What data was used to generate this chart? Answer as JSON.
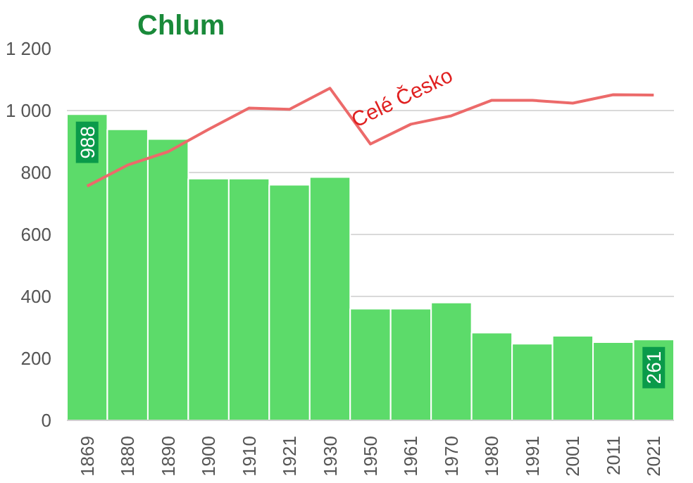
{
  "chart_data": {
    "type": "bar",
    "title": "Chlum",
    "categories": [
      "1869",
      "1880",
      "1890",
      "1900",
      "1910",
      "1921",
      "1930",
      "1950",
      "1961",
      "1970",
      "1980",
      "1991",
      "2001",
      "2011",
      "2021"
    ],
    "series": [
      {
        "color": "#5cdb6a",
        "values": [
          988,
          939,
          908,
          780,
          780,
          760,
          785,
          360,
          360,
          380,
          283,
          247,
          273,
          252,
          261
        ],
        "value_labels": [
          "988",
          null,
          null,
          null,
          null,
          null,
          null,
          null,
          null,
          null,
          null,
          null,
          null,
          null,
          "261"
        ]
      },
      {
        "type": "line",
        "name": "Celé Česko",
        "color": "#ec6a6a",
        "values": [
          756,
          824,
          867,
          939,
          1008,
          1004,
          1072,
          892,
          956,
          983,
          1033,
          1033,
          1024,
          1051,
          1050
        ]
      }
    ],
    "ylim": [
      0,
      1200
    ],
    "yticks": [
      0,
      200,
      400,
      600,
      800,
      {
        "value": 1000,
        "label": "1 000"
      },
      {
        "value": 1200,
        "label": "1 200"
      }
    ],
    "grid": "y"
  }
}
